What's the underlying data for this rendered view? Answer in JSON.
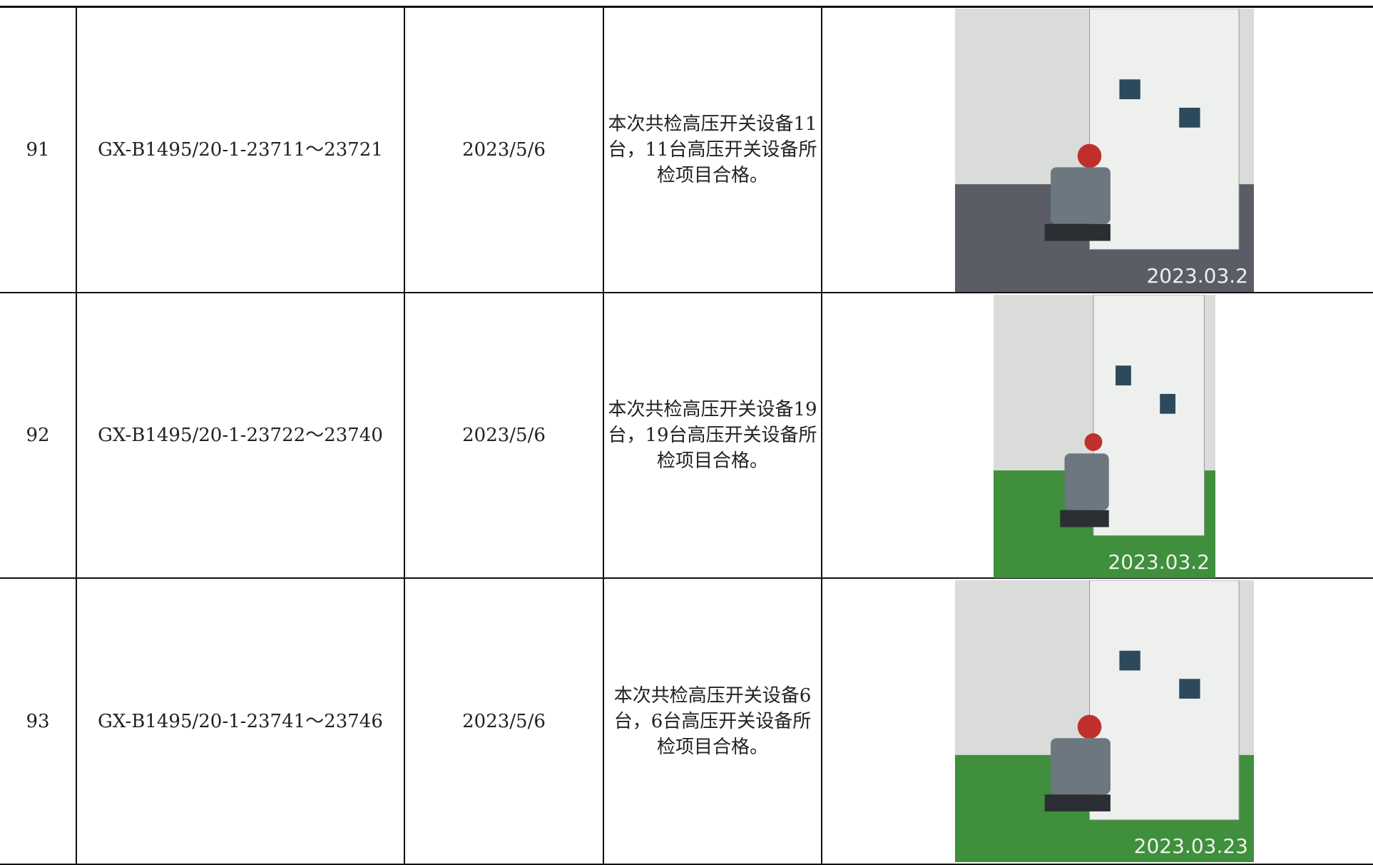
{
  "table": {
    "rows": [
      [
        "91",
        "GX-B1495/20-1-23711～23721",
        "2023/5/6",
        "本次共检高压开关设备11台，11台高压开关设备所检项目合格。",
        "2023.03.2"
      ],
      [
        "92",
        "GX-B1495/20-1-23722～23740",
        "2023/5/6",
        "本次共检高压开关设备19台，19台高压开关设备所检项目合格。",
        "2023.03.2"
      ],
      [
        "93",
        "GX-B1495/20-1-23741～23746",
        "2023/5/6",
        "本次共检高压开关设备6台，6台高压开关设备所检项目合格。",
        "2023.03.23"
      ]
    ]
  }
}
